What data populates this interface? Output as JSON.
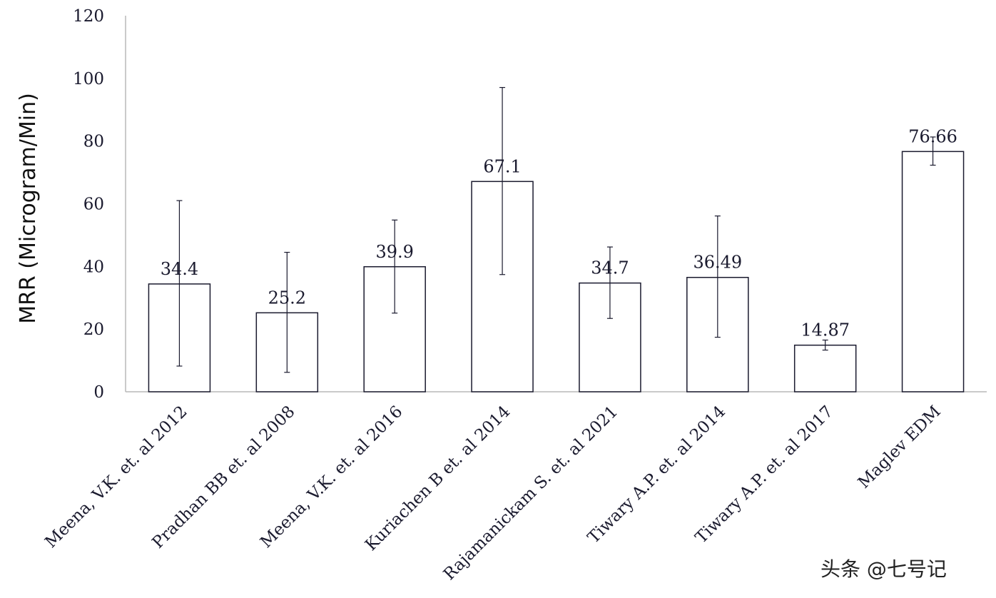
{
  "chart_data": {
    "type": "bar",
    "title": "",
    "xlabel": "",
    "ylabel": "MRR (Microgram/Min)",
    "ylim": [
      0,
      120
    ],
    "yticks": [
      0,
      20,
      40,
      60,
      80,
      100,
      120
    ],
    "grid": false,
    "legend": "none",
    "categories": [
      "Meena, V.K. et. al 2012",
      "Pradhan BB et. al 2008",
      "Meena, V.K. et. al 2016",
      "Kuriachen B et. al 2014",
      "Rajamanickam S. et. al 2021",
      "Tiwary A.P. et. al 2014",
      "Tiwary A.P. et. al 2017",
      "Maglev EDM"
    ],
    "values": [
      34.4,
      25.2,
      39.9,
      67.1,
      34.7,
      36.49,
      14.87,
      76.66
    ],
    "value_labels": [
      "34.4",
      "25.2",
      "39.9",
      "67.1",
      "34.7",
      "36.49",
      "14.87",
      "76.66"
    ],
    "error_bars": [
      {
        "low": 8.2,
        "high": 61
      },
      {
        "low": 6.2,
        "high": 44.5
      },
      {
        "low": 25.1,
        "high": 54.8
      },
      {
        "low": 37.4,
        "high": 97.1
      },
      {
        "low": 23.4,
        "high": 46.2
      },
      {
        "low": 17.4,
        "high": 56.1
      },
      {
        "low": 13.3,
        "high": 16.5
      },
      {
        "low": 72.3,
        "high": 81.3
      }
    ],
    "colors": {
      "bar_fill": "#ffffff",
      "bar_stroke": "#1a1a2e",
      "axis": "#b0b0b0"
    }
  },
  "watermark": "头条 @七号记"
}
